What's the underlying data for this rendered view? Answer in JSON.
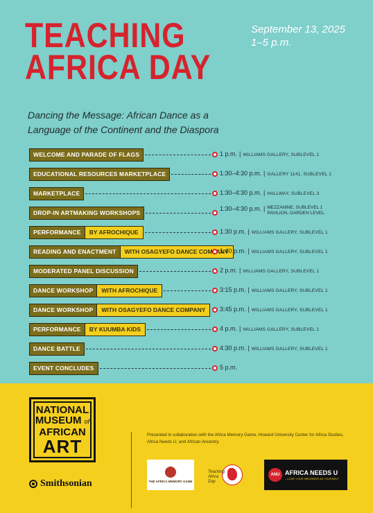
{
  "header": {
    "title_line1": "TEACHING",
    "title_line2": "AFRICA DAY",
    "date": "September 13, 2025",
    "time": "1–5 p.m.",
    "subtitle_line1": "Dancing the Message: African Dance as a",
    "subtitle_line2": "Language of the Continent and the Diaspora"
  },
  "schedule": [
    {
      "event": "Welcome and Parade of Flags",
      "extra": "",
      "time": "1 p.m.",
      "location": "Williams Gallery, Sublevel 1",
      "location2": ""
    },
    {
      "event": "Educational Resources Marketplace",
      "extra": "",
      "time": "1:30–4:30 p.m.",
      "location": "Gallery 1141, Sublevel 1",
      "location2": ""
    },
    {
      "event": "Marketplace",
      "extra": "",
      "time": "1:30–4:30 p.m.",
      "location": "Hallway, Sublevel 3",
      "location2": ""
    },
    {
      "event": "Drop-in Artmaking Workshops",
      "extra": "",
      "time": "1:30–4:30 p.m.",
      "location": "Mezzanine, Sublevel 1",
      "location2": "Pavilion, Garden Level"
    },
    {
      "event": "Performance",
      "extra": "by Afrochique",
      "time": "1:30 p.m.",
      "location": "Williams Gallery, Sublevel 1",
      "location2": ""
    },
    {
      "event": "Reading and Enactment",
      "extra": "with Osagyefo Dance Company",
      "time": "1:40 p.m.",
      "location": "Williams Gallery, Sublevel 1",
      "location2": ""
    },
    {
      "event": "Moderated Panel Discussion",
      "extra": "",
      "time": "2 p.m.",
      "location": "Williams Gallery, Sublevel 1",
      "location2": ""
    },
    {
      "event": "Dance Workshop",
      "extra": "with Afrochique",
      "time": "3:15 p.m.",
      "location": "Williams Gallery, Sublevel 1",
      "location2": ""
    },
    {
      "event": "Dance Workshop",
      "extra": "with Osagyefo Dance Company",
      "time": "3:45 p.m.",
      "location": "Williams Gallery, Sublevel 1",
      "location2": ""
    },
    {
      "event": "Performance",
      "extra": "by Kuumba Kids",
      "time": "4 p.m.",
      "location": "Williams Gallery, Sublevel 1",
      "location2": ""
    },
    {
      "event": "Dance Battle",
      "extra": "",
      "time": "4:30 p.m.",
      "location": "Williams Gallery, Sublevel 1",
      "location2": ""
    },
    {
      "event": "Event Concludes",
      "extra": "",
      "time": "5 p.m.",
      "location": "",
      "location2": ""
    }
  ],
  "footer": {
    "logo_line1": "NATIONAL",
    "logo_line2": "MUSEUM",
    "logo_of": "of",
    "logo_line3": "AFRICAN",
    "logo_line4": "ART",
    "smithsonian": "Smithsonian",
    "collaboration": "Presented in collaboration with the Africa Memory Game, Howard University Center for Africa Studies, Africa Needs U, and African Ancestry.",
    "partner1": "THE AFRICA MEMORY GAME",
    "partner2_line1": "Teaching",
    "partner2_line2": "Africa",
    "partner2_line3": "Day",
    "partner3_badge": "ANU",
    "partner3_name": "AFRICA NEEDS U",
    "partner3_tagline": "...LOVE YOUR NEIGHBOR AS YOURSELF"
  },
  "colors": {
    "background": "#7fcfcb",
    "title_red": "#d6232d",
    "tag_olive": "#7b6d1b",
    "tag_yellow": "#f3cf1d",
    "footer_yellow": "#f4cf1e"
  }
}
